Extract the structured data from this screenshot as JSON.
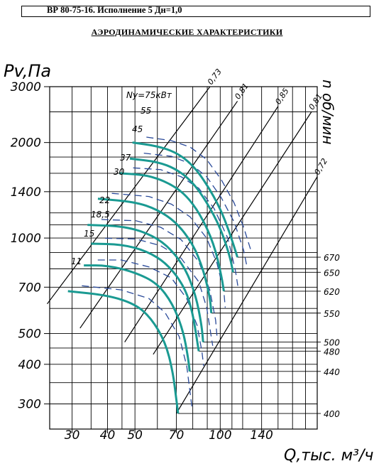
{
  "header": "ВР 80-75-16. Исполнение 5 Дн=1,0",
  "title": "АЭРОДИНАМИЧЕСКИЕ ХАРАКТЕРИСТИКИ",
  "chart_data": {
    "type": "line",
    "xlabel": "Q,тыс. м³/ч",
    "ylabel": "Pv,Па",
    "y2label": "n об/мин",
    "x_scale": "log",
    "y_scale": "log",
    "xlim": [
      25,
      220
    ],
    "ylim": [
      250,
      3000
    ],
    "x_ticks": [
      30,
      40,
      50,
      70,
      100,
      140
    ],
    "y_ticks": [
      300,
      400,
      500,
      700,
      1000,
      1400,
      2000,
      3000
    ],
    "efficiency_lines": [
      {
        "label": "0,73",
        "points": [
          [
            24.5,
            620
          ],
          [
            92,
            3000
          ]
        ]
      },
      {
        "label": "0,81",
        "points": [
          [
            32,
            520
          ],
          [
            115,
            2700
          ]
        ]
      },
      {
        "label": "0,85",
        "points": [
          [
            46,
            470
          ],
          [
            160,
            2600
          ]
        ]
      },
      {
        "label": "0,81",
        "points": [
          [
            58,
            430
          ],
          [
            210,
            2500
          ]
        ]
      },
      {
        "label": "0,72",
        "points": [
          [
            70,
            280
          ],
          [
            220,
            1560
          ]
        ]
      }
    ],
    "power_labels": [
      "Ny=75кВт",
      "55",
      "45",
      "37",
      "30",
      "22",
      "18,5",
      "15",
      "11"
    ],
    "series": [
      {
        "name": "670",
        "points": [
          [
            49,
            2000
          ],
          [
            60,
            1950
          ],
          [
            70,
            1860
          ],
          [
            80,
            1700
          ],
          [
            90,
            1470
          ],
          [
            100,
            1240
          ],
          [
            108,
            1040
          ],
          [
            115,
            870
          ]
        ]
      },
      {
        "name": "650",
        "points": [
          [
            48,
            1780
          ],
          [
            60,
            1740
          ],
          [
            70,
            1650
          ],
          [
            80,
            1500
          ],
          [
            90,
            1290
          ],
          [
            100,
            1080
          ],
          [
            108,
            880
          ],
          [
            111,
            780
          ]
        ]
      },
      {
        "name": "620",
        "points": [
          [
            44,
            1600
          ],
          [
            55,
            1580
          ],
          [
            65,
            1500
          ],
          [
            75,
            1380
          ],
          [
            85,
            1190
          ],
          [
            95,
            960
          ],
          [
            101,
            760
          ],
          [
            103,
            680
          ]
        ]
      },
      {
        "name": "550",
        "points": [
          [
            37,
            1330
          ],
          [
            50,
            1300
          ],
          [
            60,
            1230
          ],
          [
            70,
            1120
          ],
          [
            80,
            960
          ],
          [
            87,
            800
          ],
          [
            92,
            650
          ],
          [
            93,
            580
          ]
        ]
      },
      {
        "name": "500",
        "points": [
          [
            34,
            1100
          ],
          [
            45,
            1090
          ],
          [
            55,
            1040
          ],
          [
            65,
            950
          ],
          [
            75,
            810
          ],
          [
            82,
            660
          ],
          [
            86,
            530
          ],
          [
            87,
            470
          ]
        ]
      },
      {
        "name": "480",
        "points": [
          [
            35,
            960
          ],
          [
            45,
            955
          ],
          [
            55,
            910
          ],
          [
            65,
            830
          ],
          [
            75,
            700
          ],
          [
            80,
            580
          ],
          [
            83,
            470
          ],
          [
            84,
            440
          ]
        ]
      },
      {
        "name": "440",
        "points": [
          [
            33,
            820
          ],
          [
            40,
            820
          ],
          [
            50,
            780
          ],
          [
            60,
            720
          ],
          [
            68,
            620
          ],
          [
            74,
            510
          ],
          [
            77,
            420
          ],
          [
            78,
            380
          ]
        ]
      },
      {
        "name": "400",
        "points": [
          [
            29,
            680
          ],
          [
            40,
            660
          ],
          [
            50,
            620
          ],
          [
            57,
            560
          ],
          [
            64,
            470
          ],
          [
            68,
            380
          ],
          [
            70,
            310
          ],
          [
            71,
            280
          ]
        ]
      }
    ]
  }
}
